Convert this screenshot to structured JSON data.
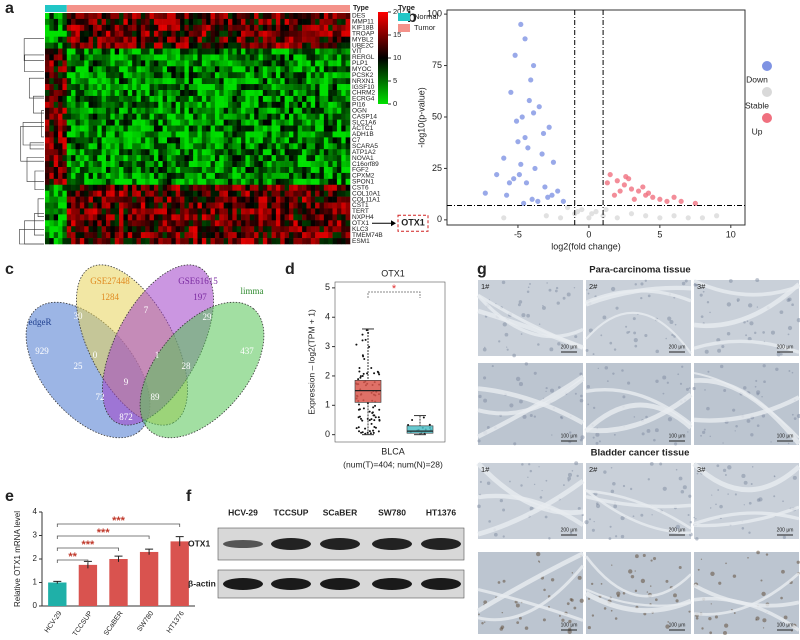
{
  "panel_labels": [
    "a",
    "b",
    "c",
    "d",
    "e",
    "f",
    "g"
  ],
  "chart_data": [
    {
      "type": "heatmap",
      "track_label": "Type",
      "legend_title": "Type",
      "groups": [
        {
          "name": "Normal",
          "color": "#21c6c6"
        },
        {
          "name": "Tumor",
          "color": "#f4928a"
        }
      ],
      "genes": [
        "DES",
        "MMP11",
        "KIF18B",
        "TROAP",
        "MYBL2",
        "UBE2C",
        "VIT",
        "RERGL",
        "PLP1",
        "MYOC",
        "PCSK2",
        "NRXN1",
        "IGSF10",
        "CHRM2",
        "ECRG4",
        "PI16",
        "OGN",
        "CASP14",
        "SLC1A6",
        "ACTC1",
        "ADH1B",
        "C7",
        "SCARA5",
        "ATP1A2",
        "NOVA1",
        "C16orf89",
        "FGF2",
        "CPXM2",
        "SPON1",
        "CST6",
        "COL10A1",
        "COL11A1",
        "CST1",
        "TERT",
        "NXPH4",
        "OTX1",
        "KLC3",
        "TMEM74B",
        "ESM1"
      ],
      "colorbar": {
        "lim": [
          0,
          20
        ],
        "ticks": [
          0,
          5,
          10,
          15,
          20
        ],
        "colors": [
          "#00e000",
          "#000000",
          "#ff0000"
        ]
      },
      "highlight": "OTX1"
    },
    {
      "type": "scatter",
      "ylabel": "-log10(p-value)",
      "xlabel": "log2(fold change)",
      "xlim": [
        -10,
        11
      ],
      "ylim": [
        -2.5,
        102
      ],
      "xticks": [
        -5,
        0,
        5,
        10
      ],
      "yticks": [
        0,
        25,
        50,
        75,
        100
      ],
      "thresholds": {
        "x": [
          -1,
          1
        ],
        "y": 7
      },
      "series": [
        {
          "name": "Down",
          "color": "#7f93e3",
          "x": [
            -4.8,
            -4.5,
            -5.2,
            -3.9,
            -4.1,
            -5.5,
            -3.5,
            -4.7,
            -2.8,
            -3.2,
            -5.0,
            -4.3,
            -6.0,
            -2.5,
            -3.8,
            -4.9,
            -5.3,
            -4.4,
            -3.1,
            -2.2,
            -5.8,
            -4.0,
            -3.6,
            -4.6,
            -6.5,
            -7.3,
            -1.8,
            -2.9,
            -5.1,
            -4.2,
            -3.3,
            -4.8,
            -5.6,
            -2.6,
            -3.9,
            -4.5
          ],
          "values": [
            95,
            88,
            80,
            75,
            68,
            62,
            55,
            50,
            45,
            42,
            38,
            35,
            30,
            28,
            25,
            22,
            20,
            18,
            16,
            14,
            12,
            10,
            9,
            8,
            22,
            13,
            9,
            11,
            48,
            58,
            32,
            27,
            18,
            12,
            52,
            40
          ]
        },
        {
          "name": "Stable",
          "color": "#d9d9d9",
          "x": [
            -3,
            -2,
            -1,
            -0.5,
            0,
            0.5,
            1,
            2,
            3,
            4,
            5,
            6,
            7,
            8,
            -1.5,
            0.2,
            1.2,
            -6,
            9,
            -0.8
          ],
          "values": [
            2,
            1,
            3,
            5,
            1,
            4,
            2,
            1,
            3,
            2,
            1,
            2,
            1,
            1,
            6,
            3,
            5,
            1,
            2,
            4
          ]
        },
        {
          "name": "Up",
          "color": "#f0707f",
          "x": [
            1.5,
            2.0,
            2.5,
            3.0,
            3.5,
            4.0,
            4.5,
            5.0,
            1.8,
            2.8,
            3.8,
            5.5,
            6.5,
            7.5,
            2.2,
            3.2,
            4.2,
            1.3,
            6.0,
            2.6
          ],
          "values": [
            22,
            19,
            17,
            15,
            14,
            12,
            11,
            10,
            12,
            20,
            16,
            9,
            9,
            8,
            14,
            10,
            13,
            18,
            11,
            21
          ]
        }
      ]
    },
    {
      "type": "venn",
      "sets": [
        {
          "name": "edgeR",
          "color": "#4a78d0",
          "text_color": "#1f3f8f"
        },
        {
          "name": "GSE27448",
          "color": "#e8d45a",
          "text_color": "#e08a20"
        },
        {
          "name": "GSE61615",
          "color": "#a040c8",
          "text_color": "#7a2aa0"
        },
        {
          "name": "limma",
          "color": "#55c455",
          "text_color": "#2e8a2e"
        }
      ],
      "regions": [
        929,
        1284,
        197,
        437,
        30,
        7,
        29,
        0,
        1,
        25,
        9,
        28,
        72,
        89,
        872
      ]
    },
    {
      "type": "box",
      "title": "OTX1",
      "ylabel": "Expression – log2(TPM + 1)",
      "xlabel": "BLCA",
      "caption": "(num(T)=404; num(N)=28)",
      "significance": "*",
      "ylim": [
        -0.25,
        5.2
      ],
      "yticks": [
        0,
        1,
        2,
        3,
        4,
        5
      ],
      "boxes": [
        {
          "color": "#d9574c",
          "min": 0,
          "q1": 1.1,
          "median": 1.5,
          "q3": 1.85,
          "max": 3.6
        },
        {
          "color": "#4cc0c8",
          "min": 0,
          "q1": 0.05,
          "median": 0.12,
          "q3": 0.3,
          "max": 0.65
        }
      ]
    },
    {
      "type": "bar",
      "ylabel": "Relative OTX1 mRNA level",
      "categories": [
        "HCV-29",
        "TCCSUP",
        "SCaBER",
        "SW780",
        "HT1376"
      ],
      "values": [
        1.0,
        1.75,
        2.0,
        2.3,
        2.75
      ],
      "errors": [
        0.05,
        0.15,
        0.12,
        0.12,
        0.2
      ],
      "colors": [
        "#1fb0a8",
        "#d9534f",
        "#d9534f",
        "#d9534f",
        "#d9534f"
      ],
      "ylim": [
        0,
        4
      ],
      "yticks": [
        0,
        1,
        2,
        3,
        4
      ],
      "significance": [
        "**",
        "***",
        "***",
        "***"
      ]
    }
  ],
  "blot": {
    "lanes": [
      "HCV-29",
      "TCCSUP",
      "SCaBER",
      "SW780",
      "HT1376"
    ],
    "rows": [
      "OTX1",
      "β-actin"
    ]
  },
  "ihc": {
    "sections": [
      {
        "title": "Para-carcinoma tissue",
        "samples": [
          "1#",
          "2#",
          "3#"
        ],
        "scales": [
          "200 μm",
          "100 μm"
        ]
      },
      {
        "title": "Bladder cancer tissue",
        "samples": [
          "1#",
          "2#",
          "3#"
        ],
        "scales": [
          "200 μm",
          "100 μm"
        ]
      }
    ]
  }
}
